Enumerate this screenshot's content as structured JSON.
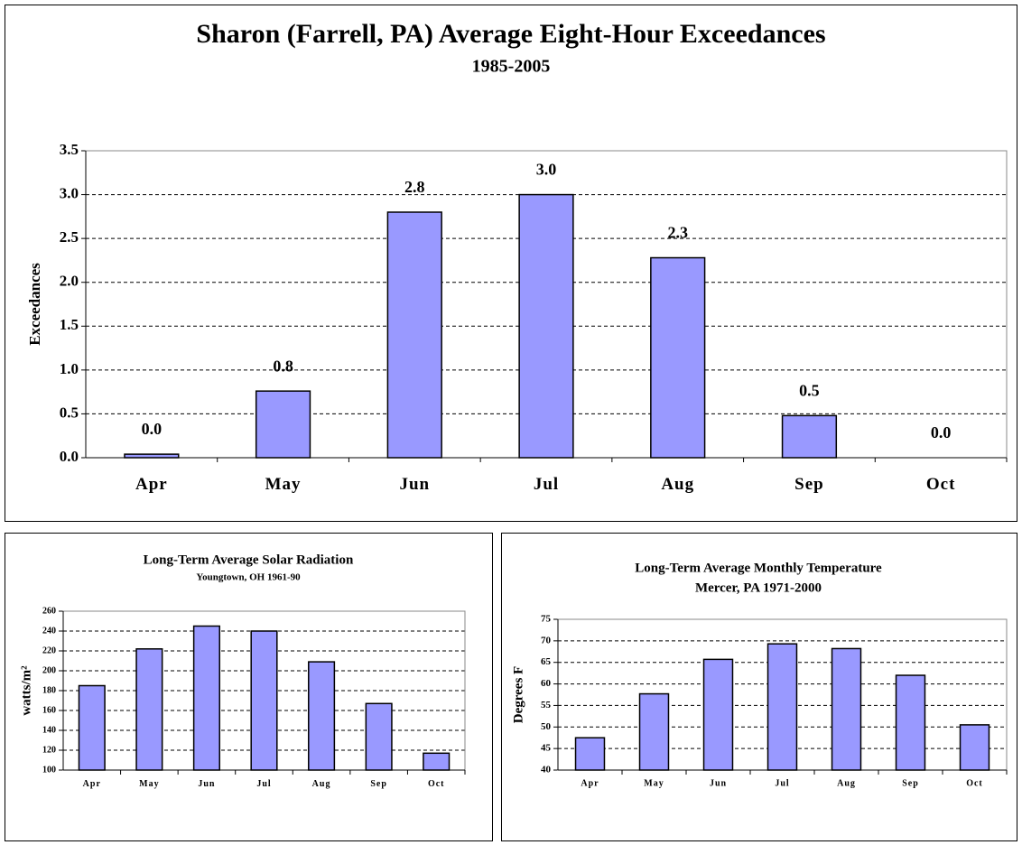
{
  "chart_data": [
    {
      "type": "bar",
      "title": "Sharon (Farrell, PA) Average Eight-Hour Exceedances",
      "subtitle": "1985-2005",
      "y_label": "Exceedances",
      "categories": [
        "Apr",
        "May",
        "Jun",
        "Jul",
        "Aug",
        "Sep",
        "Oct"
      ],
      "values": [
        0.04,
        0.76,
        2.8,
        3.0,
        2.28,
        0.48,
        0
      ],
      "value_labels": [
        "0.0",
        "0.8",
        "2.8",
        "3.0",
        "2.3",
        "0.5",
        "0.0"
      ],
      "color": "#9999ff",
      "ylim": [
        0,
        3.5
      ],
      "yticks": [
        {
          "value": 0,
          "label": "0.0"
        },
        0.5,
        {
          "value": 1,
          "label": "1.0"
        },
        1.5,
        {
          "value": 2,
          "label": "2.0"
        },
        2.5,
        {
          "value": 3,
          "label": "3.0"
        },
        3.5
      ],
      "grid": true
    },
    {
      "type": "bar",
      "title": "Long-Term Average Solar Radiation",
      "subtitle": "Youngtown, OH 1961-90",
      "y_label": "watts/m²",
      "categories": [
        "Apr",
        "May",
        "Jun",
        "Jul",
        "Aug",
        "Sep",
        "Oct"
      ],
      "values": [
        185,
        222,
        245,
        240,
        209,
        167,
        117
      ],
      "color": "#9999ff",
      "ylim": [
        100,
        260
      ],
      "yticks": [
        100,
        120,
        140,
        160,
        180,
        200,
        220,
        240,
        260
      ],
      "grid": true
    },
    {
      "type": "bar",
      "title": "Long-Term Average Monthly Temperature",
      "subtitle": "Mercer, PA 1971-2000",
      "y_label": "Degrees F",
      "categories": [
        "Apr",
        "May",
        "Jun",
        "Jul",
        "Aug",
        "Sep",
        "Oct"
      ],
      "values": [
        47.5,
        57.7,
        65.7,
        69.3,
        68.2,
        62,
        50.5
      ],
      "color": "#9999ff",
      "ylim": [
        40,
        75
      ],
      "yticks": [
        40,
        45,
        50,
        55,
        60,
        65,
        70,
        75
      ],
      "grid": true
    }
  ]
}
